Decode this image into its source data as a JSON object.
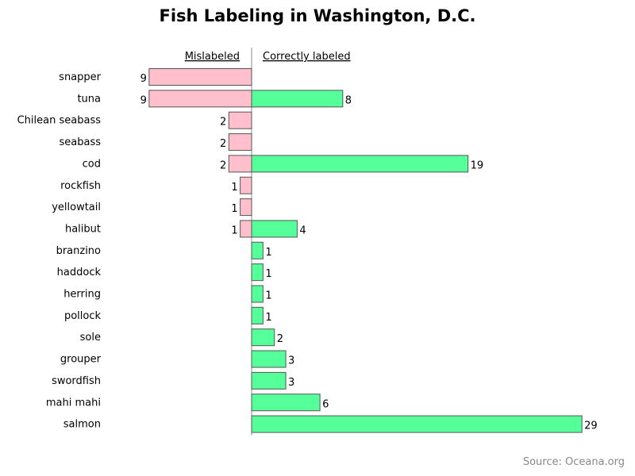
{
  "chart_data": {
    "type": "bar",
    "title": "Fish Labeling in Washington, D.C.",
    "orientation": "horizontal-diverging",
    "categories": [
      "snapper",
      "tuna",
      "Chilean seabass",
      "seabass",
      "cod",
      "rockfish",
      "yellowtail",
      "halibut",
      "branzino",
      "haddock",
      "herring",
      "pollock",
      "sole",
      "grouper",
      "swordfish",
      "mahi mahi",
      "salmon"
    ],
    "series": [
      {
        "name": "Mislabeled",
        "color": "#FFC0CB",
        "direction": "left",
        "values": [
          9,
          9,
          2,
          2,
          2,
          1,
          1,
          1,
          null,
          null,
          null,
          null,
          null,
          null,
          null,
          null,
          null
        ]
      },
      {
        "name": "Correctly labeled",
        "color": "#55FF99",
        "direction": "right",
        "values": [
          null,
          8,
          null,
          null,
          19,
          null,
          null,
          4,
          1,
          1,
          1,
          1,
          2,
          3,
          3,
          6,
          29
        ]
      }
    ],
    "grid": false,
    "legend_placement": "top"
  },
  "footer": {
    "source": "Source: Oceana.org"
  },
  "colors": {
    "mislabeled": "#FFC0CB",
    "correct": "#55FF99",
    "outline": "#555555",
    "axis": "#888888"
  }
}
